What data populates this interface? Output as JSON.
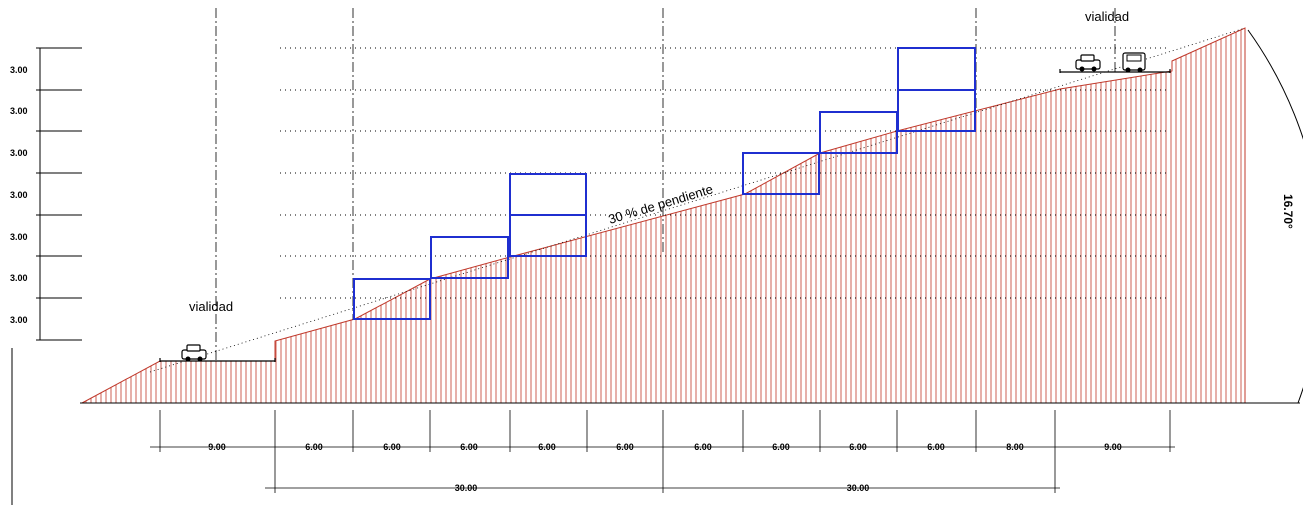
{
  "labels": {
    "road_left": "vialidad",
    "road_right": "vialidad",
    "slope": "30 % de pendiente",
    "angle": "16.70°"
  },
  "level_labels": [
    "3.00",
    "3.00",
    "3.00",
    "3.00",
    "3.00",
    "3.00",
    "3.00"
  ],
  "bottom_dims": [
    "9.00",
    "6.00",
    "6.00",
    "6.00",
    "6.00",
    "6.00",
    "6.00",
    "6.00",
    "6.00",
    "6.00",
    "8.00",
    "9.00"
  ],
  "total_dims": [
    "30.00",
    "30.00"
  ],
  "colors": {
    "terrain_hatch": "#c0392b",
    "buildings": "#1f2fd0",
    "lines": "#000000"
  },
  "icons": [
    "car-icon",
    "car-icon",
    "car-icon"
  ]
}
